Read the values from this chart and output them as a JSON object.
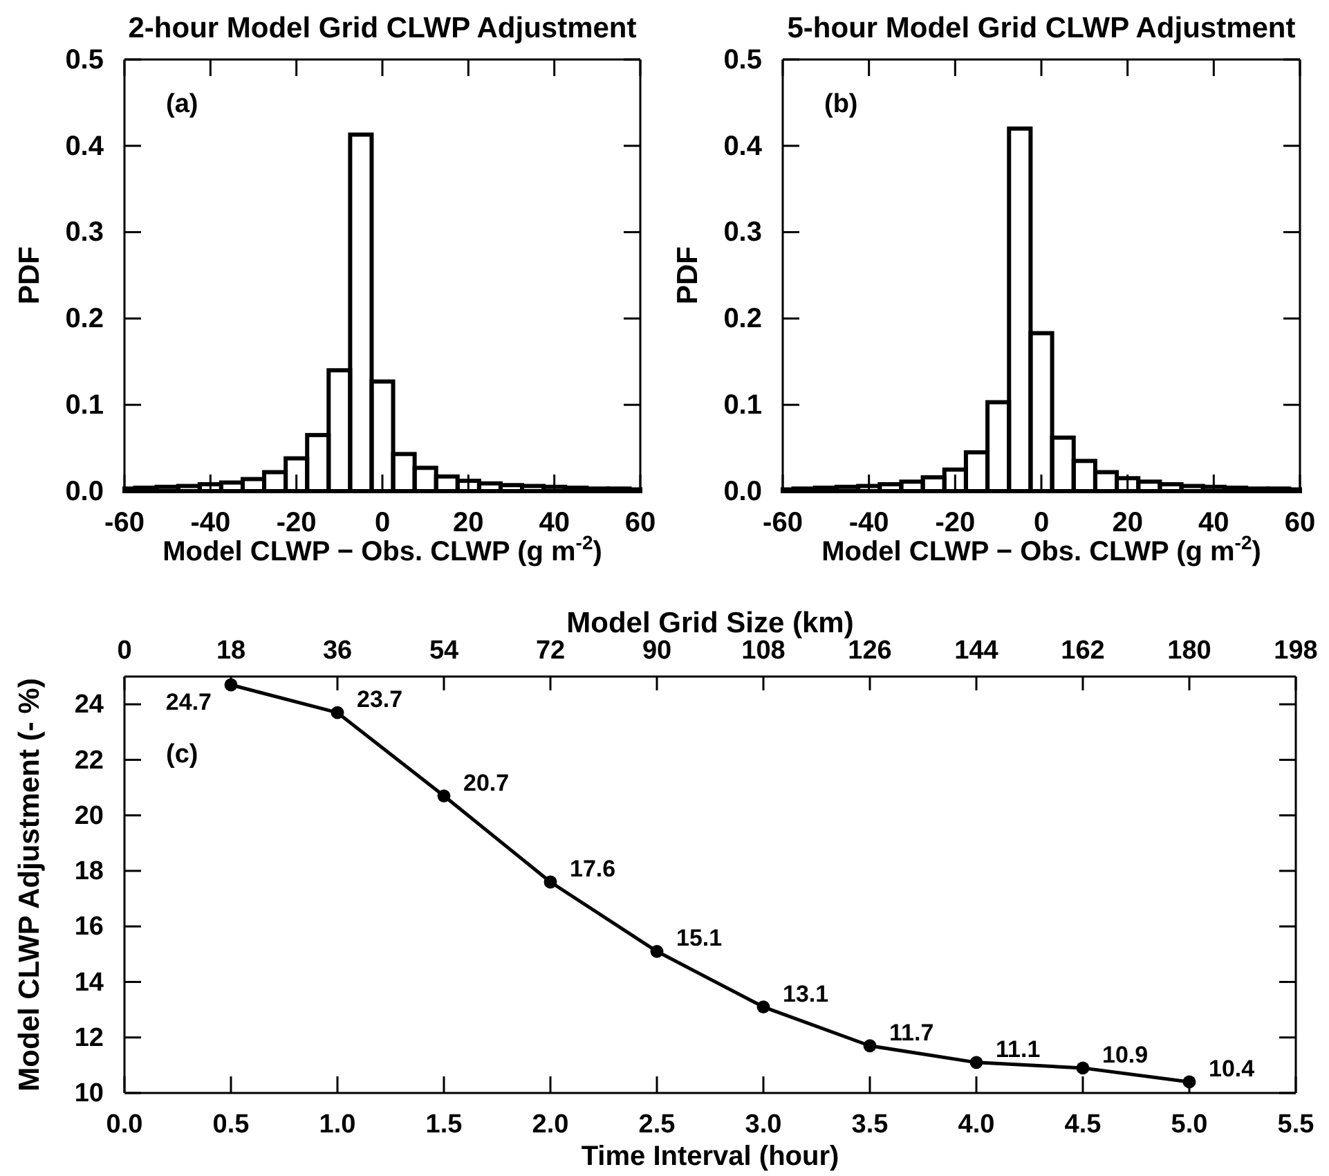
{
  "chart_data": [
    {
      "type": "histogram",
      "title": "2-hour Model Grid CLWP Adjustment",
      "xlabel": "Model CLWP − Obs. CLWP (g m$^{-2}$)",
      "ylabel": "PDF",
      "annotations": [
        "(a)"
      ],
      "bins": [
        -60,
        -57.5,
        -52.5,
        -47.5,
        -42.5,
        -37.5,
        -32.5,
        -27.5,
        -22.5,
        -17.5,
        -12.5,
        -7.5,
        -2.5,
        2.5,
        7.5,
        12.5,
        17.5,
        22.5,
        27.5,
        32.5,
        37.5,
        42.5,
        47.5,
        52.5,
        57.5,
        60
      ],
      "values": [
        0.003,
        0.004,
        0.005,
        0.006,
        0.008,
        0.01,
        0.014,
        0.022,
        0.038,
        0.065,
        0.14,
        0.413,
        0.127,
        0.043,
        0.027,
        0.017,
        0.012,
        0.009,
        0.007,
        0.006,
        0.005,
        0.004,
        0.003,
        0.003,
        0.002
      ],
      "color": "#000000",
      "xlim": [
        -60,
        60
      ],
      "xticks": [
        -60,
        -40,
        -20,
        0,
        20,
        40,
        60
      ],
      "ylim": [
        0,
        0.5
      ],
      "yticks": [
        {
          "value": 0,
          "label": "0.0"
        },
        0.1,
        0.2,
        0.3,
        0.4,
        0.5
      ],
      "grid": false
    },
    {
      "type": "histogram",
      "title": "5-hour Model Grid CLWP Adjustment",
      "xlabel": "Model CLWP − Obs. CLWP (g m$^{-2}$)",
      "ylabel": "PDF",
      "annotations": [
        "(b)"
      ],
      "bins": [
        -60,
        -57.5,
        -52.5,
        -47.5,
        -42.5,
        -37.5,
        -32.5,
        -27.5,
        -22.5,
        -17.5,
        -12.5,
        -7.5,
        -2.5,
        2.5,
        7.5,
        12.5,
        17.5,
        22.5,
        27.5,
        32.5,
        37.5,
        42.5,
        47.5,
        52.5,
        57.5,
        60
      ],
      "values": [
        0.002,
        0.003,
        0.004,
        0.005,
        0.006,
        0.008,
        0.011,
        0.016,
        0.025,
        0.045,
        0.103,
        0.42,
        0.183,
        0.062,
        0.035,
        0.022,
        0.015,
        0.011,
        0.008,
        0.006,
        0.005,
        0.004,
        0.003,
        0.003,
        0.002
      ],
      "color": "#000000",
      "xlim": [
        -60,
        60
      ],
      "xticks": [
        -60,
        -40,
        -20,
        0,
        20,
        40,
        60
      ],
      "ylim": [
        0,
        0.5
      ],
      "yticks": [
        {
          "value": 0,
          "label": "0.0"
        },
        0.1,
        0.2,
        0.3,
        0.4,
        0.5
      ],
      "grid": false
    },
    {
      "type": "line",
      "xlabel": "Time Interval (hour)",
      "x2label": "Model Grid Size (km)",
      "ylabel": "Model CLWP Adjustment (- %)",
      "annotations": [
        "(c)"
      ],
      "x": [
        0.5,
        1.0,
        1.5,
        2.0,
        2.5,
        3.0,
        3.5,
        4.0,
        4.5,
        5.0
      ],
      "values": [
        24.7,
        23.7,
        20.7,
        17.6,
        15.1,
        13.1,
        11.7,
        11.1,
        10.9,
        10.4
      ],
      "color": "#000000",
      "marker": "circle",
      "line_style": "solid",
      "data_labels": true,
      "grid": false,
      "xlim": [
        0,
        5.5
      ],
      "xticks": [
        {
          "value": 0,
          "label": "0.0"
        },
        0.5,
        {
          "value": 1,
          "label": "1.0"
        },
        1.5,
        {
          "value": 2,
          "label": "2.0"
        },
        2.5,
        {
          "value": 3,
          "label": "3.0"
        },
        3.5,
        {
          "value": 4,
          "label": "4.0"
        },
        4.5,
        {
          "value": 5,
          "label": "5.0"
        },
        5.5
      ],
      "x2lim": [
        0,
        198
      ],
      "x2ticks": [
        0,
        18,
        36,
        54,
        72,
        90,
        108,
        126,
        144,
        162,
        180,
        198
      ],
      "ylim": [
        10,
        25
      ],
      "yticks": [
        10,
        12,
        14,
        16,
        18,
        20,
        22,
        24
      ]
    }
  ]
}
